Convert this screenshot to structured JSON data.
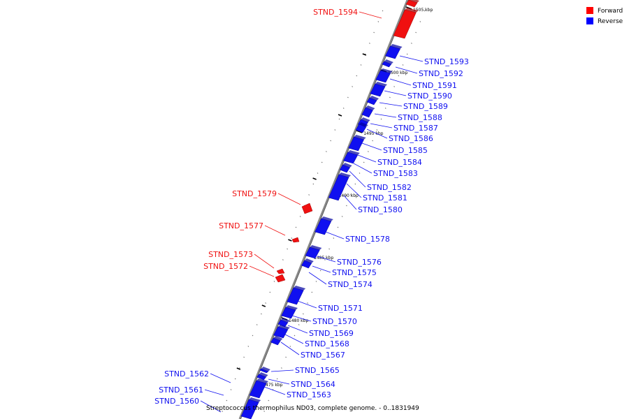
{
  "colors": {
    "forward": "#f01010",
    "reverse": "#1010f0",
    "forward_dark": "#a00000",
    "reverse_dark": "#0000a0",
    "backbone": "#888888",
    "tick": "#000000"
  },
  "legend": [
    {
      "label": "Forward",
      "color": "#ff0000"
    },
    {
      "label": "Reverse",
      "color": "#0000ff"
    }
  ],
  "caption": "Streptococcus thermophilus ND03, complete genome. - 0..1831949",
  "kbp_markers": [
    "1505 kbp",
    "1500 kbp",
    "1495 kbp",
    "1490 kbp",
    "1485 kbp",
    "1480 kbp",
    "1475 kbp"
  ],
  "genes_reverse": [
    "STND_1593",
    "STND_1592",
    "STND_1591",
    "STND_1590",
    "STND_1589",
    "STND_1588",
    "STND_1587",
    "STND_1586",
    "STND_1585",
    "STND_1584",
    "STND_1583",
    "STND_1582",
    "STND_1581",
    "STND_1580",
    "STND_1578",
    "STND_1576",
    "STND_1575",
    "STND_1574",
    "STND_1571",
    "STND_1570",
    "STND_1569",
    "STND_1568",
    "STND_1567",
    "STND_1565",
    "STND_1564",
    "STND_1563",
    "STND_1562",
    "STND_1561",
    "STND_1560"
  ],
  "genes_forward": [
    "STND_1594",
    "STND_1579",
    "STND_1577",
    "STND_1573",
    "STND_1572"
  ]
}
